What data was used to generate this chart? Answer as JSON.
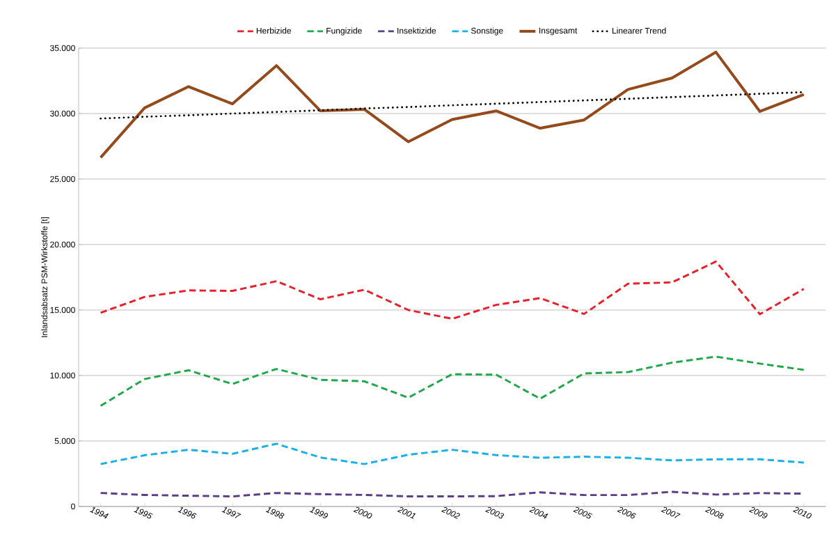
{
  "chart_data": {
    "type": "line",
    "ylabel": "Inlandsabsatz PSM-Wirkstoffe [t]",
    "categories": [
      "1994",
      "1995",
      "1996",
      "1997",
      "1998",
      "1999",
      "2000",
      "2001",
      "2002",
      "2003",
      "2004",
      "2005",
      "2006",
      "2007",
      "2008",
      "2009",
      "2010"
    ],
    "series": [
      {
        "name": "Herbizide",
        "color": "#e8202a",
        "line_style": "dashed",
        "values": [
          14790,
          16000,
          16500,
          16460,
          17200,
          15820,
          16550,
          15000,
          14330,
          15390,
          15910,
          14700,
          17010,
          17110,
          18700,
          14680,
          16610
        ]
      },
      {
        "name": "Fungizide",
        "color": "#1fa84a",
        "line_style": "dashed",
        "values": [
          7680,
          9730,
          10400,
          9350,
          10500,
          9670,
          9560,
          8310,
          10100,
          10060,
          8230,
          10160,
          10260,
          10980,
          11440,
          10910,
          10430
        ]
      },
      {
        "name": "Insektizide",
        "color": "#5b3f86",
        "line_style": "dashed",
        "values": [
          1030,
          880,
          820,
          770,
          1030,
          940,
          880,
          770,
          770,
          790,
          1080,
          870,
          870,
          1120,
          910,
          1020,
          980
        ]
      },
      {
        "name": "Sonstige",
        "color": "#18b0e6",
        "line_style": "dashed",
        "values": [
          3240,
          3910,
          4330,
          4020,
          4790,
          3740,
          3240,
          3950,
          4330,
          3920,
          3720,
          3800,
          3720,
          3520,
          3600,
          3600,
          3350
        ]
      },
      {
        "name": "Insgesamt",
        "color": "#954a1c",
        "line_style": "solid",
        "values": [
          26640,
          30430,
          32060,
          30740,
          33660,
          30210,
          30320,
          27850,
          29550,
          30200,
          28880,
          29510,
          31840,
          32710,
          34690,
          30160,
          31450
        ]
      },
      {
        "name": "Linearer Trend",
        "type": "line",
        "color": "#000000",
        "line_style": "dotted",
        "values": [
          29620,
          29750,
          29870,
          30000,
          30120,
          30250,
          30380,
          30500,
          30630,
          30750,
          30880,
          31000,
          31130,
          31250,
          31380,
          31500,
          31630
        ]
      }
    ],
    "ylim": [
      0,
      35000
    ],
    "yticks": [
      0,
      {
        "value": 5000,
        "label": "5.000"
      },
      {
        "value": 10000,
        "label": "10.000"
      },
      {
        "value": 15000,
        "label": "15.000"
      },
      {
        "value": 20000,
        "label": "20.000"
      },
      {
        "value": 25000,
        "label": "25.000"
      },
      {
        "value": 30000,
        "label": "30.000"
      },
      {
        "value": 35000,
        "label": "35.000"
      }
    ],
    "grid": "y",
    "legend": "top",
    "marker": "none"
  }
}
